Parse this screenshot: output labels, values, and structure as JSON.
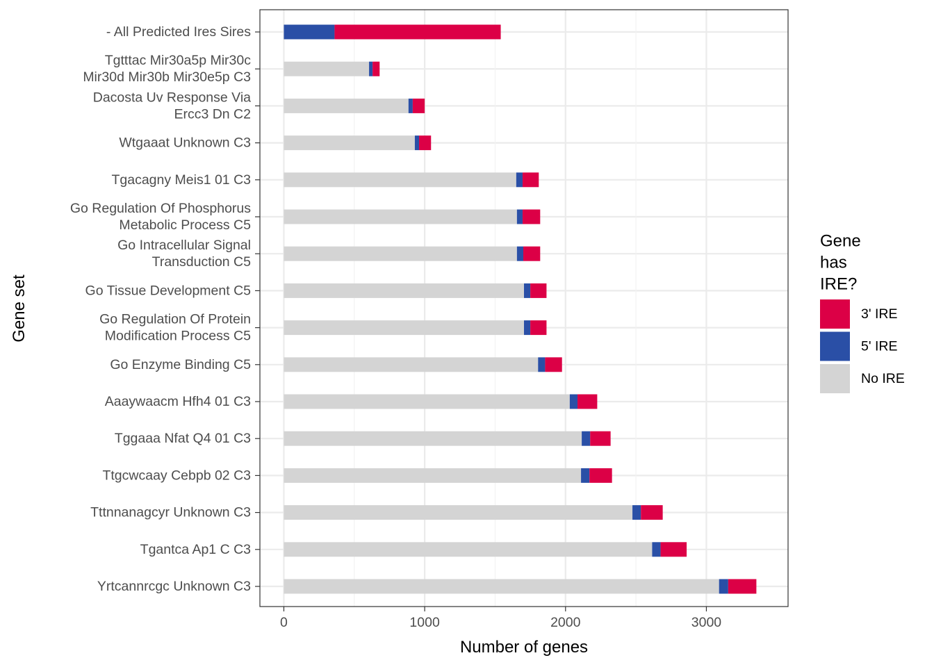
{
  "chart_data": {
    "type": "bar",
    "orientation": "horizontal",
    "stacked": true,
    "xlabel": "Number of genes",
    "ylabel": "Gene set",
    "xlim": [
      -170,
      3580
    ],
    "xticks": [
      0,
      1000,
      2000,
      3000
    ],
    "xtick_labels": [
      "0",
      "1000",
      "2000",
      "3000"
    ],
    "grid": true,
    "legend": {
      "title_lines": [
        "Gene",
        "has",
        "IRE?"
      ],
      "position": "right",
      "entries": [
        {
          "label": "3' IRE",
          "color": "#dc0046"
        },
        {
          "label": "5' IRE",
          "color": "#2a4fa6"
        },
        {
          "label": "No IRE",
          "color": "#d4d4d4"
        }
      ]
    },
    "categories": [
      [
        "- All Predicted Ires Sires"
      ],
      [
        "Tgtttac Mir30a5p Mir30c",
        "Mir30d Mir30b Mir30e5p C3"
      ],
      [
        "Dacosta Uv Response Via",
        "Ercc3 Dn C2"
      ],
      [
        "Wtgaaat Unknown C3"
      ],
      [
        "Tgacagny Meis1 01 C3"
      ],
      [
        "Go Regulation Of Phosphorus",
        "Metabolic Process C5"
      ],
      [
        "Go Intracellular Signal",
        "Transduction C5"
      ],
      [
        "Go Tissue Development C5"
      ],
      [
        "Go Regulation Of Protein",
        "Modification Process C5"
      ],
      [
        "Go Enzyme Binding C5"
      ],
      [
        "Aaaywaacm Hfh4 01 C3"
      ],
      [
        "Tggaaa Nfat Q4 01 C3"
      ],
      [
        "Ttgcwcaay Cebpb 02 C3"
      ],
      [
        "Tttnnanagcyr Unknown C3"
      ],
      [
        "Tgantca Ap1 C C3"
      ],
      [
        "Yrtcannrcgc Unknown C3"
      ]
    ],
    "series": [
      {
        "name": "No IRE",
        "color": "#d4d4d4",
        "values": [
          0,
          605,
          885,
          930,
          1650,
          1655,
          1655,
          1705,
          1705,
          1805,
          2030,
          2115,
          2110,
          2475,
          2615,
          3090
        ]
      },
      {
        "name": "5' IRE",
        "color": "#2a4fa6",
        "values": [
          360,
          25,
          30,
          30,
          45,
          40,
          45,
          45,
          45,
          50,
          55,
          60,
          60,
          60,
          60,
          65
        ]
      },
      {
        "name": "3' IRE",
        "color": "#dc0046",
        "values": [
          1180,
          50,
          85,
          85,
          115,
          125,
          120,
          115,
          115,
          120,
          140,
          145,
          160,
          155,
          185,
          200
        ]
      }
    ]
  }
}
